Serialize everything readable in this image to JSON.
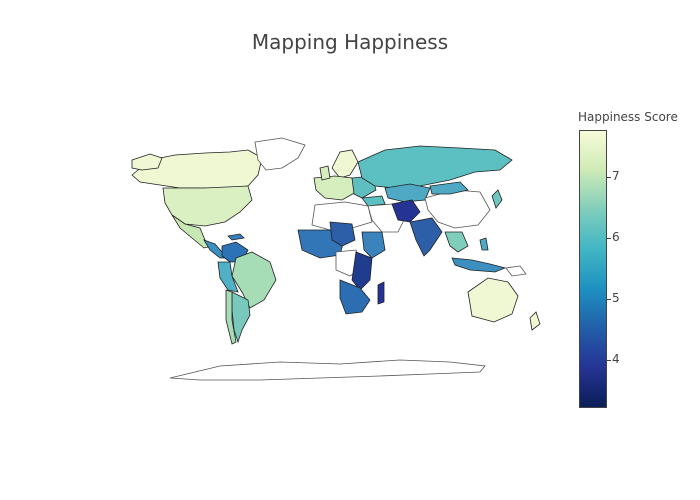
{
  "title": "Mapping Happiness",
  "colorbar": {
    "title": "Happiness Score",
    "ticks": [
      "7",
      "6",
      "5",
      "4"
    ],
    "min": 3.2,
    "max": 7.8,
    "colors": [
      "#f8fbd9",
      "#cdeab5",
      "#7fcdbb",
      "#41b6c4",
      "#1d91c0",
      "#225ea8",
      "#253494",
      "#0b1e57"
    ]
  },
  "legend_scale": "YlGnBu"
}
